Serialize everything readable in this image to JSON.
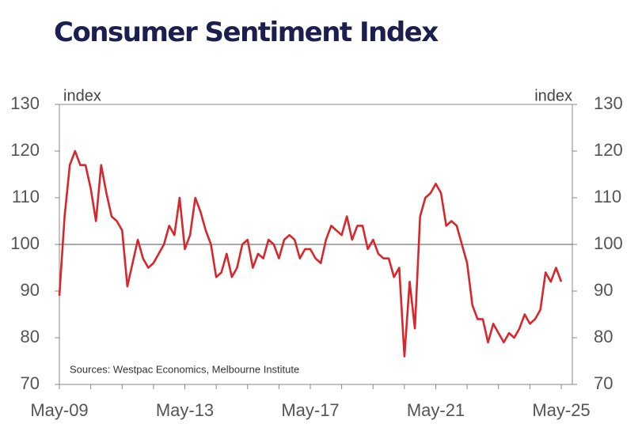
{
  "chart_data": {
    "type": "line",
    "title": "Consumer Sentiment Index",
    "y_label": "index",
    "y2_label": "index",
    "note": "Sources: Westpac Economics, Melbourne Institute",
    "categories": [
      "May-09",
      null,
      null,
      null,
      null,
      null,
      null,
      null,
      null,
      null,
      null,
      null,
      null,
      null,
      null,
      null,
      null,
      null,
      null,
      null,
      null,
      null,
      null,
      null,
      "May-13",
      null,
      null,
      null,
      null,
      null,
      null,
      null,
      null,
      null,
      null,
      null,
      null,
      null,
      null,
      null,
      null,
      null,
      null,
      null,
      null,
      null,
      null,
      null,
      "May-17",
      null,
      null,
      null,
      null,
      null,
      null,
      null,
      null,
      null,
      null,
      null,
      null,
      null,
      null,
      null,
      null,
      null,
      null,
      null,
      null,
      null,
      null,
      null,
      "May-21",
      null,
      null,
      null,
      null,
      null,
      null,
      null,
      null,
      null,
      null,
      null,
      null,
      null,
      null,
      null,
      null,
      null,
      null,
      null,
      null,
      null,
      null,
      null,
      "May-25"
    ],
    "series": [
      {
        "name": "Consumer Sentiment Index",
        "color": "#d9262b",
        "values": [
          89,
          106,
          117,
          120,
          117,
          117,
          112,
          105,
          117,
          111,
          106,
          105,
          103,
          91,
          96,
          101,
          97,
          95,
          96,
          98,
          100,
          104,
          102,
          110,
          99,
          102,
          110,
          107,
          103,
          100,
          93,
          94,
          98,
          93,
          95,
          100,
          101,
          95,
          98,
          97,
          101,
          100,
          97,
          101,
          102,
          101,
          97,
          99,
          99,
          97,
          96,
          101,
          104,
          103,
          102,
          106,
          101,
          104,
          104,
          99,
          101,
          98,
          97,
          97,
          93,
          95,
          76,
          92,
          82,
          106,
          110,
          111,
          113,
          111,
          104,
          105,
          104,
          100,
          96,
          87,
          84,
          84,
          79,
          83,
          81,
          79,
          81,
          80,
          82,
          85,
          83,
          84,
          86,
          94,
          92,
          95,
          92
        ]
      }
    ],
    "ylim": [
      70,
      130
    ],
    "yticks": [
      70,
      80,
      90,
      100,
      110,
      120,
      130
    ],
    "y2lim": [
      70,
      130
    ],
    "y2ticks": [
      70,
      80,
      90,
      100,
      110,
      120,
      130
    ],
    "reference_line": 100
  }
}
